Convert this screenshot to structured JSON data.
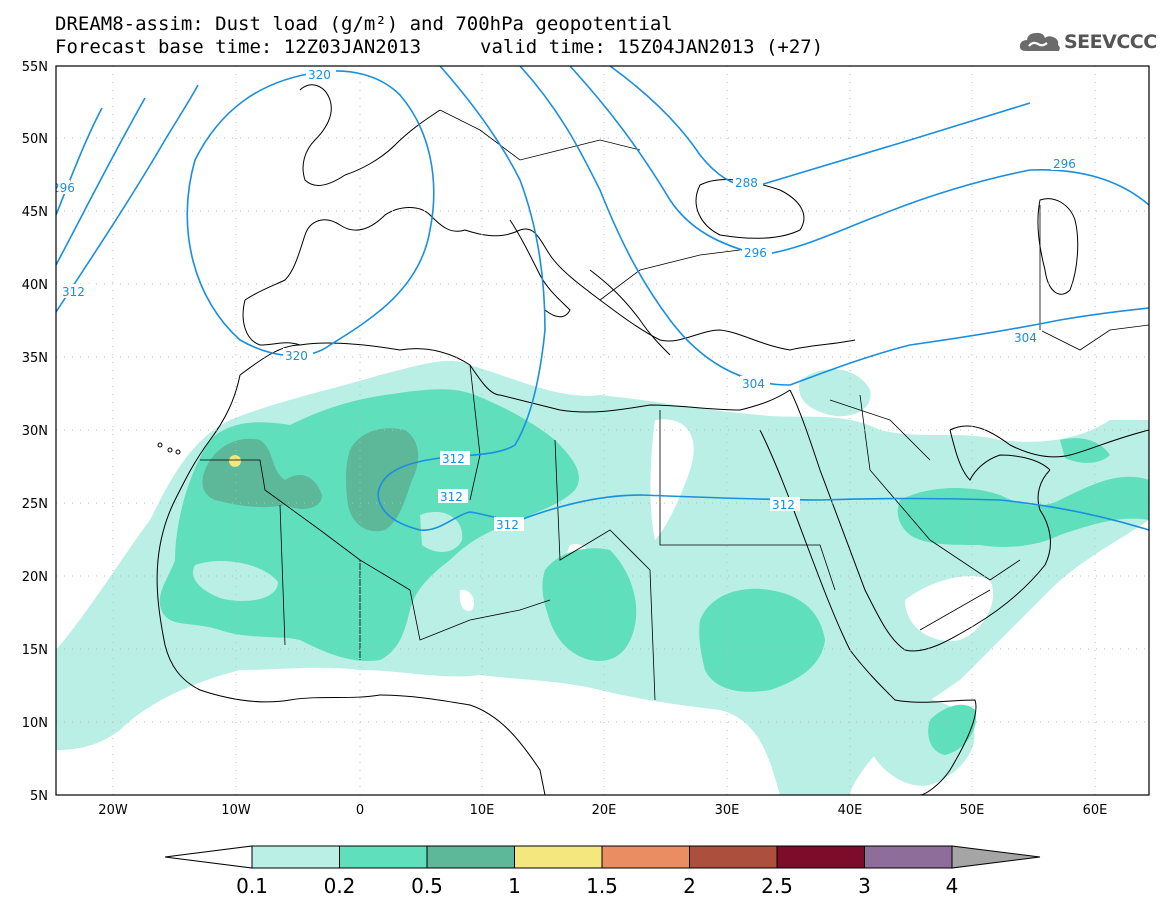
{
  "title": {
    "line1": "DREAM8-assim: Dust load (g/m²) and 700hPa geopotential",
    "line2_left": "Forecast base time: 12Z03JAN2013",
    "line2_right": "valid time: 15Z04JAN2013 (+27)"
  },
  "logo": {
    "text": "SEEVCCC",
    "icon": "cloud-icon"
  },
  "map": {
    "lat_labels": [
      "55N",
      "50N",
      "45N",
      "40N",
      "35N",
      "30N",
      "25N",
      "20N",
      "15N",
      "10N",
      "5N"
    ],
    "lon_labels": [
      "20W",
      "10W",
      "0",
      "10E",
      "20E",
      "30E",
      "40E",
      "50E",
      "60E"
    ],
    "contour_labels": [
      "320",
      "312",
      "304",
      "296",
      "288",
      "296",
      "296",
      "304",
      "320",
      "312",
      "312",
      "312",
      "312"
    ],
    "colors": {
      "contour": "#1a8fe0",
      "dust_0_1": "#b9efe4",
      "dust_0_2": "#5fdfbc",
      "dust_0_5": "#5cb898",
      "dust_1": "#f3e77d",
      "coast": "#000000"
    }
  },
  "colorbar": {
    "labels": [
      "0.1",
      "0.2",
      "0.5",
      "1",
      "1.5",
      "2",
      "2.5",
      "3",
      "4"
    ],
    "colors": [
      "#b9efe4",
      "#5fdfbc",
      "#5cb898",
      "#f3e77d",
      "#eb8d63",
      "#ad4f3d",
      "#7d0c2a",
      "#8f6d9b"
    ],
    "end_low": "#ffffff",
    "end_high": "#a5a5a5"
  }
}
